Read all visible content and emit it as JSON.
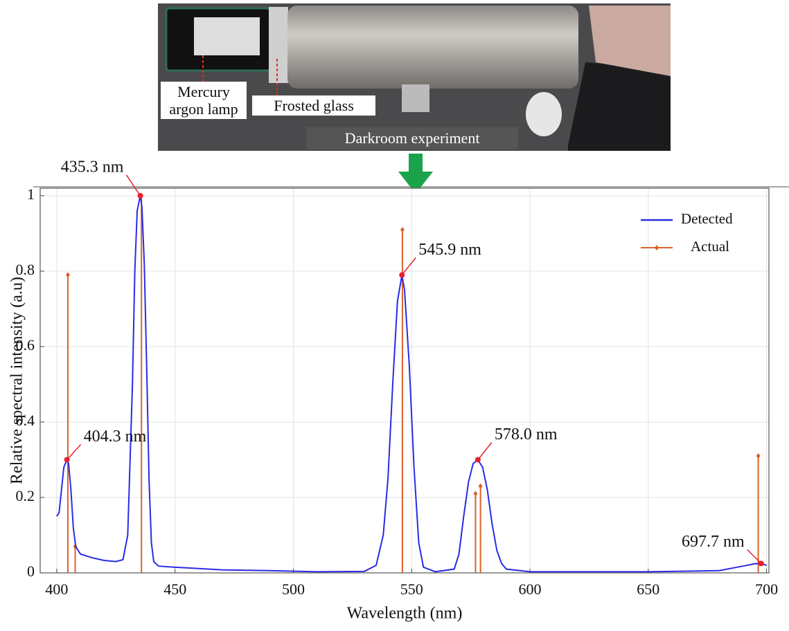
{
  "photo": {
    "labels": [
      "Mercury argon lamp",
      "Frosted glass",
      "Darkroom experiment"
    ]
  },
  "chart_data": {
    "type": "line",
    "x_label": "Wavelength (nm)",
    "y_label": "Relative spectral intensity (a.u)",
    "xlim": [
      393,
      701
    ],
    "ylim": [
      0,
      1.02
    ],
    "xticks": [
      400,
      450,
      500,
      550,
      600,
      650,
      700
    ],
    "yticks": [
      0,
      0.2,
      0.4,
      0.6,
      0.8,
      1
    ],
    "grid": true,
    "legend": "upper right",
    "series": [
      {
        "name": "Detected",
        "color": "#2a2ae6",
        "x": [
          400,
          401,
          402,
          403,
          404.3,
          405,
          406,
          407,
          408,
          410,
          415,
          420,
          425,
          428,
          430,
          432,
          433,
          434,
          435.3,
          436,
          437,
          438,
          439,
          440,
          441,
          443,
          450,
          470,
          490,
          510,
          530,
          535,
          538,
          540,
          542,
          544,
          545.9,
          547,
          549,
          551,
          553,
          555,
          560,
          568,
          570,
          572,
          574,
          576,
          578,
          580,
          582,
          584,
          586,
          588,
          590,
          600,
          650,
          680,
          690,
          695,
          697.7,
          700
        ],
        "values": [
          0.15,
          0.16,
          0.22,
          0.28,
          0.3,
          0.29,
          0.22,
          0.12,
          0.07,
          0.05,
          0.04,
          0.033,
          0.03,
          0.035,
          0.1,
          0.5,
          0.8,
          0.96,
          1.0,
          0.97,
          0.82,
          0.55,
          0.25,
          0.08,
          0.03,
          0.018,
          0.015,
          0.008,
          0.006,
          0.003,
          0.004,
          0.02,
          0.1,
          0.25,
          0.5,
          0.72,
          0.79,
          0.75,
          0.55,
          0.28,
          0.08,
          0.015,
          0.003,
          0.01,
          0.05,
          0.15,
          0.24,
          0.29,
          0.3,
          0.28,
          0.22,
          0.13,
          0.06,
          0.025,
          0.01,
          0.003,
          0.003,
          0.006,
          0.018,
          0.024,
          0.025,
          0.02
        ]
      },
      {
        "name": "Actual",
        "color": "#d9622b",
        "style": "stem",
        "x": [
          404.7,
          407.8,
          435.8,
          546.1,
          577.0,
          579.1,
          696.5
        ],
        "values": [
          0.79,
          0.07,
          1.0,
          0.91,
          0.21,
          0.23,
          0.31
        ]
      }
    ],
    "annotations": [
      {
        "x": 404.3,
        "y": 0.3,
        "label": "404.3 nm",
        "color": "#e8202a"
      },
      {
        "x": 435.3,
        "y": 1.0,
        "label": "435.3 nm",
        "color": "#e8202a"
      },
      {
        "x": 545.9,
        "y": 0.79,
        "label": "545.9 nm",
        "color": "#e8202a"
      },
      {
        "x": 578.0,
        "y": 0.3,
        "label": "578.0 nm",
        "color": "#e8202a"
      },
      {
        "x": 697.7,
        "y": 0.025,
        "label": "697.7 nm",
        "color": "#e8202a"
      }
    ]
  }
}
